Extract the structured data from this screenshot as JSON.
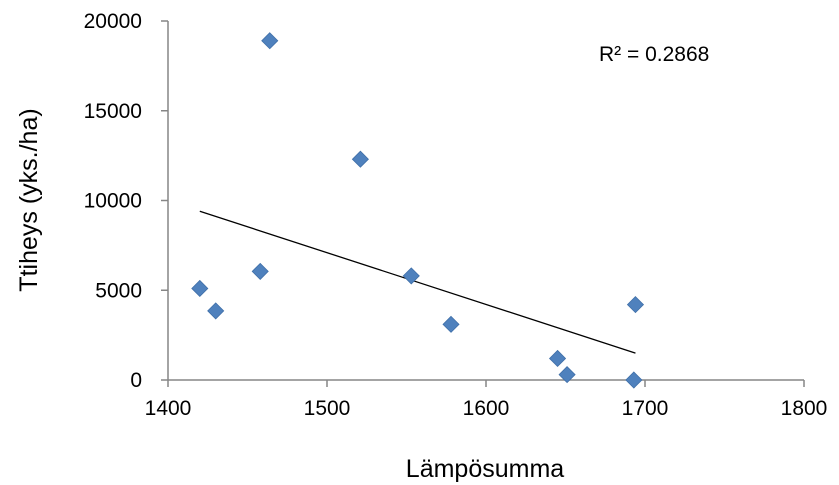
{
  "chart_data": {
    "type": "scatter",
    "xlabel": "Lämpösumma",
    "ylabel": "Ttiheys (yks./ha)",
    "xlim": [
      1400,
      1800
    ],
    "ylim": [
      0,
      20000
    ],
    "x_ticks": [
      "1400",
      "1500",
      "1600",
      "1700",
      "1800"
    ],
    "y_ticks": [
      "0",
      "5000",
      "10000",
      "15000",
      "20000"
    ],
    "grid": false,
    "legend": "none",
    "marker": "diamond",
    "marker_color": "#4F81BD",
    "trendline_color": "#000000",
    "points": [
      {
        "x": 1420,
        "y": 5100
      },
      {
        "x": 1430,
        "y": 3850
      },
      {
        "x": 1458,
        "y": 6050
      },
      {
        "x": 1464,
        "y": 18900
      },
      {
        "x": 1521,
        "y": 12300
      },
      {
        "x": 1553,
        "y": 5800
      },
      {
        "x": 1578,
        "y": 3100
      },
      {
        "x": 1645,
        "y": 1200
      },
      {
        "x": 1651,
        "y": 300
      },
      {
        "x": 1693,
        "y": 0
      },
      {
        "x": 1694,
        "y": 4200
      }
    ],
    "trendline": {
      "x": [
        1420,
        1694
      ],
      "y": [
        9400,
        1500
      ]
    },
    "annotation": "R² = 0.2868"
  }
}
